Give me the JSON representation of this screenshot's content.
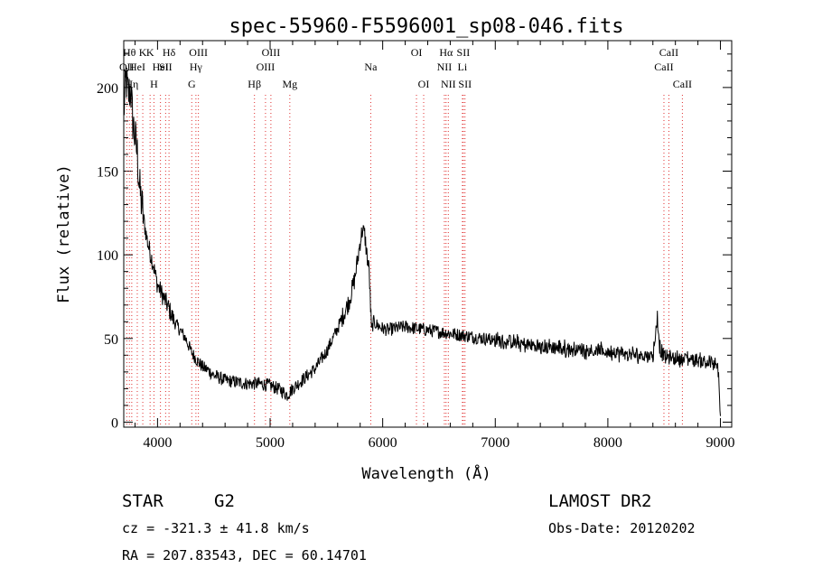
{
  "chart_data": {
    "type": "line",
    "title": "spec-55960-F5596001_sp08-046.fits",
    "xlabel": "Wavelength (Å)",
    "ylabel": "Flux (relative)",
    "xlim": [
      3700,
      9100
    ],
    "ylim": [
      -3,
      228
    ],
    "x_ticks": [
      4000,
      5000,
      6000,
      7000,
      8000,
      9000
    ],
    "y_ticks": [
      0,
      50,
      100,
      150,
      200
    ],
    "grid": false,
    "series": [
      {
        "x": [
          3700,
          3720,
          3740,
          3760,
          3780,
          3800,
          3820,
          3840,
          3860,
          3880,
          3900,
          3920,
          3940,
          3960,
          3980,
          4000,
          4050,
          4100,
          4150,
          4200,
          4250,
          4300,
          4350,
          4400,
          4450,
          4500,
          4600,
          4700,
          4800,
          4900,
          5000,
          5100,
          5150,
          5200,
          5250,
          5300,
          5400,
          5500,
          5600,
          5650,
          5700,
          5750,
          5780,
          5800,
          5820,
          5840,
          5860,
          5880,
          5900,
          5920,
          5950,
          6000,
          6050,
          6100,
          6200,
          6300,
          6400,
          6500,
          6600,
          6700,
          6800,
          6900,
          7000,
          7200,
          7400,
          7600,
          7800,
          8000,
          8200,
          8400,
          8440,
          8460,
          8500,
          8600,
          8700,
          8800,
          8900,
          8980,
          9000
        ],
        "y": [
          185,
          205,
          195,
          200,
          180,
          170,
          160,
          140,
          130,
          120,
          112,
          105,
          100,
          95,
          88,
          82,
          75,
          68,
          60,
          55,
          50,
          42,
          37,
          33,
          31,
          28,
          25,
          24,
          23,
          23,
          22,
          19,
          16,
          20,
          23,
          26,
          32,
          42,
          56,
          64,
          72,
          85,
          98,
          108,
          115,
          112,
          100,
          90,
          55,
          60,
          58,
          56,
          55,
          56,
          57,
          56,
          55,
          54,
          53,
          52,
          51,
          50,
          49,
          47,
          45,
          44,
          43,
          42,
          40,
          40,
          62,
          45,
          39,
          38,
          38,
          37,
          36,
          32,
          5
        ]
      }
    ],
    "line_labels": [
      {
        "wl": 3727,
        "text": "OII",
        "row": 2
      },
      {
        "wl": 3750,
        "text": "Hθ",
        "row": 1
      },
      {
        "wl": 3771,
        "text": "Hη",
        "row": 3
      },
      {
        "wl": 3820,
        "text": "HeI",
        "row": 2
      },
      {
        "wl": 3869,
        "text": "K",
        "row": 1
      },
      {
        "wl": 3934,
        "text": "K",
        "row": 1
      },
      {
        "wl": 3968,
        "text": "H",
        "row": 3
      },
      {
        "wl": 4026,
        "text": "HeI",
        "row": 2
      },
      {
        "wl": 4072,
        "text": "SII",
        "row": 2
      },
      {
        "wl": 4102,
        "text": "Hδ",
        "row": 1
      },
      {
        "wl": 4304,
        "text": "G",
        "row": 3
      },
      {
        "wl": 4341,
        "text": "Hγ",
        "row": 2
      },
      {
        "wl": 4363,
        "text": "OIII",
        "row": 1
      },
      {
        "wl": 4861,
        "text": "Hβ",
        "row": 3
      },
      {
        "wl": 4959,
        "text": "OIII",
        "row": 2
      },
      {
        "wl": 5007,
        "text": "OIII",
        "row": 1
      },
      {
        "wl": 5175,
        "text": "Mg",
        "row": 3
      },
      {
        "wl": 5894,
        "text": "Na",
        "row": 2
      },
      {
        "wl": 6300,
        "text": "OI",
        "row": 1
      },
      {
        "wl": 6364,
        "text": "OI",
        "row": 3
      },
      {
        "wl": 6548,
        "text": "NII",
        "row": 2
      },
      {
        "wl": 6563,
        "text": "Hα",
        "row": 1
      },
      {
        "wl": 6583,
        "text": "NII",
        "row": 3
      },
      {
        "wl": 6708,
        "text": "Li",
        "row": 2
      },
      {
        "wl": 6716,
        "text": "SII",
        "row": 1
      },
      {
        "wl": 6731,
        "text": "SII",
        "row": 3
      },
      {
        "wl": 8498,
        "text": "CaII",
        "row": 2
      },
      {
        "wl": 8542,
        "text": "CaII",
        "row": 1
      },
      {
        "wl": 8662,
        "text": "CaII",
        "row": 3
      }
    ]
  },
  "info": {
    "object_class": "STAR",
    "subclass": "G2",
    "survey": "LAMOST DR2",
    "redshift_line": "cz = -321.3 ± 41.8 km/s",
    "obs_date_line": "Obs-Date: 20120202",
    "coords_line": "RA = 207.83543, DEC =  60.14701"
  }
}
